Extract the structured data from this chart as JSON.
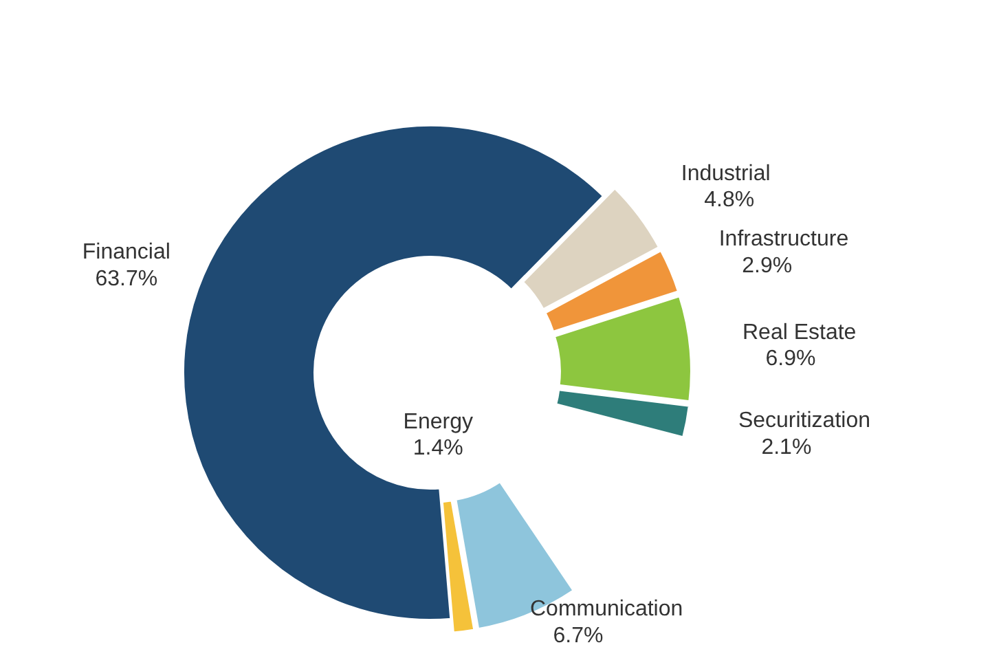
{
  "chart_data": {
    "type": "donut",
    "categories": [
      "Communication",
      "Energy",
      "Financial",
      "Industrial",
      "Infrastructure",
      "Real Estate",
      "Securitization"
    ],
    "values": [
      6.7,
      1.4,
      63.7,
      4.8,
      2.9,
      6.9,
      2.1
    ],
    "value_labels": [
      "6.7%",
      "1.4%",
      "63.7%",
      "4.8%",
      "2.9%",
      "6.9%",
      "2.1%"
    ],
    "colors": [
      "#8ec5dc",
      "#f5c23a",
      "#1f4a73",
      "#ddd3c0",
      "#f0953a",
      "#8dc63f",
      "#2e7d7a"
    ]
  }
}
